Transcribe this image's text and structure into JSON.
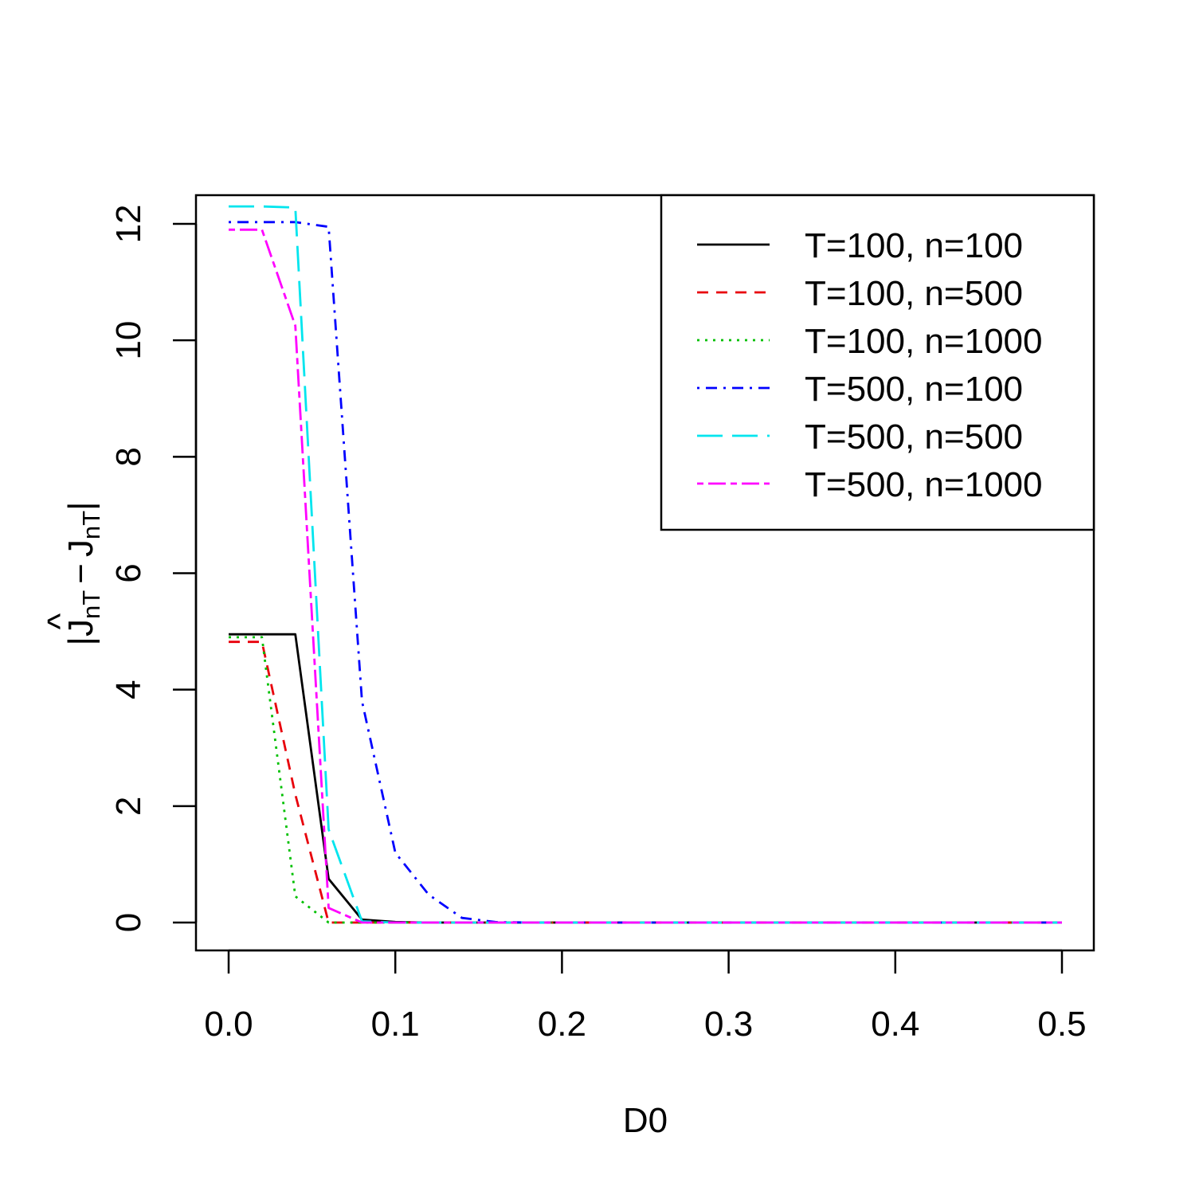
{
  "chart_data": {
    "type": "line",
    "title": "",
    "xlabel": "D0",
    "ylabel_parts": {
      "open": "|",
      "hat_symbol": "^",
      "j1": "J",
      "sub1": "nT",
      "minus": "−",
      "j2": "J",
      "sub2": "nT",
      "close": "|"
    },
    "xlim": [
      0.0,
      0.5
    ],
    "ylim": [
      0,
      12.5
    ],
    "x_ticks": [
      0.0,
      0.1,
      0.2,
      0.3,
      0.4,
      0.5
    ],
    "x_tick_labels": [
      "0.0",
      "0.1",
      "0.2",
      "0.3",
      "0.4",
      "0.5"
    ],
    "y_ticks": [
      0,
      2,
      4,
      6,
      8,
      10,
      12
    ],
    "y_tick_labels": [
      "0",
      "2",
      "4",
      "6",
      "8",
      "10",
      "12"
    ],
    "grid": false,
    "legend_position": "top-right",
    "x": [
      0.0,
      0.02,
      0.04,
      0.06,
      0.08,
      0.1,
      0.12,
      0.14,
      0.16,
      0.18,
      0.2,
      0.22,
      0.24,
      0.26,
      0.28,
      0.3,
      0.32,
      0.34,
      0.36,
      0.38,
      0.4,
      0.42,
      0.44,
      0.46,
      0.48,
      0.5
    ],
    "series": [
      {
        "name": "T=100, n=100",
        "color": "#000000",
        "dash": "solid",
        "values": [
          4.95,
          4.95,
          4.95,
          0.75,
          0.05,
          0.01,
          0,
          0,
          0,
          0,
          0,
          0,
          0,
          0,
          0,
          0,
          0,
          0,
          0,
          0,
          0,
          0,
          0,
          0,
          0,
          0
        ]
      },
      {
        "name": "T=100, n=500",
        "color": "#e8000b",
        "dash": "dashed",
        "values": [
          4.82,
          4.82,
          2.2,
          0,
          0,
          0,
          0,
          0,
          0,
          0,
          0,
          0,
          0,
          0,
          0,
          0,
          0,
          0,
          0,
          0,
          0,
          0,
          0,
          0,
          0,
          0
        ]
      },
      {
        "name": "T=100, n=1000",
        "color": "#00c000",
        "dash": "dotted",
        "values": [
          4.9,
          4.9,
          0.45,
          0,
          0,
          0,
          0,
          0,
          0,
          0,
          0,
          0,
          0,
          0,
          0,
          0,
          0,
          0,
          0,
          0,
          0,
          0,
          0,
          0,
          0,
          0
        ]
      },
      {
        "name": "T=500, n=100",
        "color": "#0000ff",
        "dash": "dotdash",
        "values": [
          12.03,
          12.03,
          12.03,
          11.95,
          3.8,
          1.2,
          0.48,
          0.08,
          0.01,
          0,
          0,
          0,
          0,
          0,
          0,
          0,
          0,
          0,
          0,
          0,
          0,
          0,
          0,
          0,
          0,
          0
        ]
      },
      {
        "name": "T=500, n=500",
        "color": "#00e5ee",
        "dash": "longdash",
        "values": [
          12.3,
          12.3,
          12.28,
          1.6,
          0.02,
          0,
          0,
          0,
          0,
          0,
          0,
          0,
          0,
          0,
          0,
          0,
          0,
          0,
          0,
          0,
          0,
          0,
          0,
          0,
          0,
          0
        ]
      },
      {
        "name": "T=500, n=1000",
        "color": "#ff00ff",
        "dash": "twodash",
        "values": [
          11.9,
          11.9,
          10.25,
          0.25,
          0,
          0,
          0,
          0,
          0,
          0,
          0,
          0,
          0,
          0,
          0,
          0,
          0,
          0,
          0,
          0,
          0,
          0,
          0,
          0,
          0,
          0
        ]
      }
    ]
  }
}
